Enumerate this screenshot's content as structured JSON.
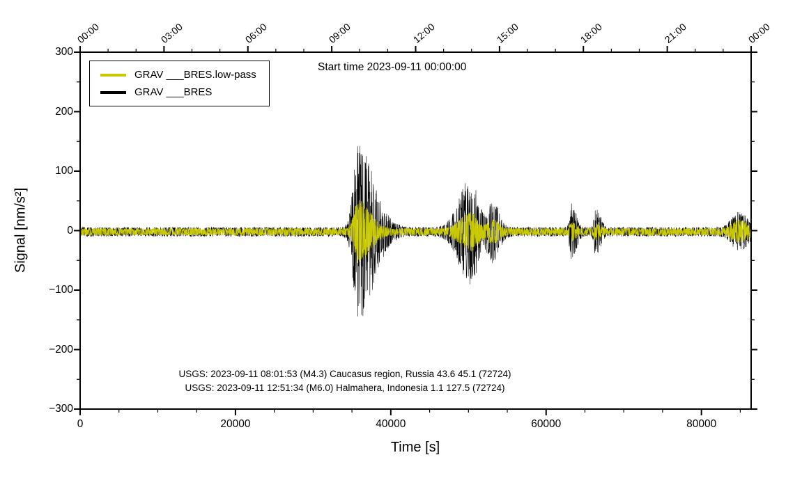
{
  "chart_data": {
    "type": "line",
    "title": "Start time 2023-09-11 00:00:00",
    "xlabel": "Time [s]",
    "ylabel": "Signal [nm/s²]",
    "xlim": [
      0,
      86400
    ],
    "ylim": [
      -300,
      300
    ],
    "grid": false,
    "x_axis_bottom": {
      "major_values": [
        0,
        20000,
        40000,
        60000,
        80000
      ],
      "major_labels": [
        "0",
        "20000",
        "40000",
        "60000",
        "80000"
      ],
      "minor_interval": 5000
    },
    "x_axis_top": {
      "major_values": [
        0,
        10800,
        21600,
        32400,
        43200,
        54000,
        64800,
        75600,
        86400
      ],
      "labels": [
        "00:00",
        "03:00",
        "06:00",
        "09:00",
        "12:00",
        "15:00",
        "18:00",
        "21:00",
        "00:00"
      ],
      "minor_interval": 3600
    },
    "y_axis": {
      "major_values": [
        300,
        200,
        100,
        0,
        -100,
        -200,
        -300
      ],
      "major_labels": [
        "300",
        "200",
        "100",
        "0",
        "−100",
        "−200",
        "−300"
      ],
      "minor_interval": 50
    },
    "legend": {
      "position": "top-left",
      "entries": [
        {
          "label": "GRAV ___BRES.low-pass",
          "color": "#c9c900"
        },
        {
          "label": "GRAV ___BRES",
          "color": "#000000"
        }
      ]
    },
    "annotations": [
      "USGS: 2023-09-11 08:01:53 (M4.3) Caucasus region, Russia 43.6 45.1 (72724)",
      "USGS: 2023-09-11 12:51:34 (M6.0) Halmahera, Indonesia 1.1 127.5 (72724)"
    ],
    "series": [
      {
        "name": "GRAV ___BRES",
        "color": "#000000",
        "stroke_width": 0.6,
        "offset": -2,
        "base_amplitude": 8,
        "bursts": [
          {
            "t_center": 35800,
            "rise_s": 600,
            "decay_s": 2000,
            "peak": 140
          },
          {
            "t_center": 50200,
            "rise_s": 1400,
            "decay_s": 1100,
            "peak": 82
          },
          {
            "t_center": 53100,
            "rise_s": 500,
            "decay_s": 800,
            "peak": 45
          },
          {
            "t_center": 63300,
            "rise_s": 250,
            "decay_s": 550,
            "peak": 42
          },
          {
            "t_center": 66400,
            "rise_s": 200,
            "decay_s": 550,
            "peak": 36
          },
          {
            "t_center": 84800,
            "rise_s": 900,
            "decay_s": 1100,
            "peak": 26
          }
        ]
      },
      {
        "name": "GRAV ___BRES.low-pass",
        "color": "#c9c900",
        "stroke_width": 0.9,
        "offset": -2,
        "base_amplitude": 6,
        "bursts": [
          {
            "t_center": 35800,
            "rise_s": 500,
            "decay_s": 1500,
            "peak": 48
          },
          {
            "t_center": 50200,
            "rise_s": 1200,
            "decay_s": 1000,
            "peak": 28
          },
          {
            "t_center": 53100,
            "rise_s": 500,
            "decay_s": 700,
            "peak": 17
          },
          {
            "t_center": 63300,
            "rise_s": 250,
            "decay_s": 500,
            "peak": 10
          },
          {
            "t_center": 66400,
            "rise_s": 200,
            "decay_s": 500,
            "peak": 9
          },
          {
            "t_center": 84800,
            "rise_s": 800,
            "decay_s": 1000,
            "peak": 15
          }
        ]
      }
    ]
  }
}
